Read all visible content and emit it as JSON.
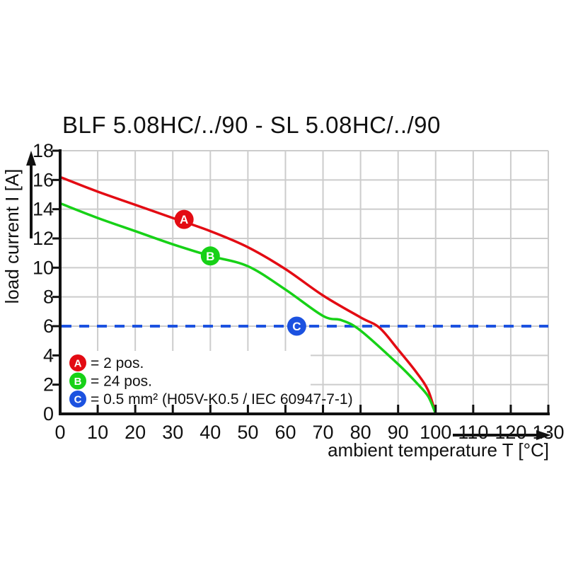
{
  "title": "BLF 5.08HC/../90 - SL 5.08HC/../90",
  "colors": {
    "red": "#e30b13",
    "green": "#17d117",
    "blue": "#1c52e0",
    "axis": "#111111",
    "grid": "#cccccc",
    "text": "#111111"
  },
  "chart_data": {
    "type": "line",
    "title": "BLF 5.08HC/../90 - SL 5.08HC/../90",
    "xlabel": "ambient temperature T [°C]",
    "ylabel": "load current I [A]",
    "xlim": [
      0,
      130
    ],
    "ylim": [
      0,
      18
    ],
    "x_ticks": [
      0,
      10,
      20,
      30,
      40,
      50,
      60,
      70,
      80,
      90,
      100,
      110,
      120,
      130
    ],
    "y_ticks": [
      0,
      2,
      4,
      6,
      8,
      10,
      12,
      14,
      16,
      18
    ],
    "grid": true,
    "series": [
      {
        "name": "A",
        "label": "= 2 pos.",
        "color": "#e30b13",
        "marker": {
          "letter": "A",
          "x": 33,
          "y": 13.3
        },
        "points": [
          [
            0,
            16.2
          ],
          [
            10,
            15.2
          ],
          [
            20,
            14.3
          ],
          [
            30,
            13.4
          ],
          [
            40,
            12.5
          ],
          [
            50,
            11.4
          ],
          [
            60,
            9.9
          ],
          [
            70,
            8.1
          ],
          [
            80,
            6.6
          ],
          [
            85,
            5.9
          ],
          [
            90,
            4.4
          ],
          [
            95,
            2.8
          ],
          [
            98,
            1.6
          ],
          [
            100,
            0
          ]
        ]
      },
      {
        "name": "B",
        "label": "= 24 pos.",
        "color": "#17d117",
        "marker": {
          "letter": "B",
          "x": 40,
          "y": 10.8
        },
        "points": [
          [
            0,
            14.4
          ],
          [
            10,
            13.4
          ],
          [
            20,
            12.5
          ],
          [
            30,
            11.6
          ],
          [
            40,
            10.8
          ],
          [
            50,
            10.1
          ],
          [
            60,
            8.5
          ],
          [
            70,
            6.7
          ],
          [
            75,
            6.4
          ],
          [
            80,
            5.7
          ],
          [
            90,
            3.4
          ],
          [
            95,
            2.1
          ],
          [
            98,
            1.2
          ],
          [
            100,
            0
          ]
        ]
      }
    ],
    "reference_line": {
      "name": "C",
      "label": "= 0.5 mm² (H05V-K0.5 / IEC 60947-7-1)",
      "color": "#1c52e0",
      "y": 6,
      "style": "dashed",
      "marker": {
        "letter": "C",
        "x": 63,
        "y": 6
      }
    },
    "legend": {
      "position": "bottom-left",
      "entries": [
        {
          "letter": "A",
          "color": "#e30b13",
          "label": "= 2 pos."
        },
        {
          "letter": "B",
          "color": "#17d117",
          "label": "= 24 pos."
        },
        {
          "letter": "C",
          "color": "#1c52e0",
          "label": "= 0.5 mm² (H05V-K0.5 / IEC 60947-7-1)"
        }
      ]
    }
  }
}
